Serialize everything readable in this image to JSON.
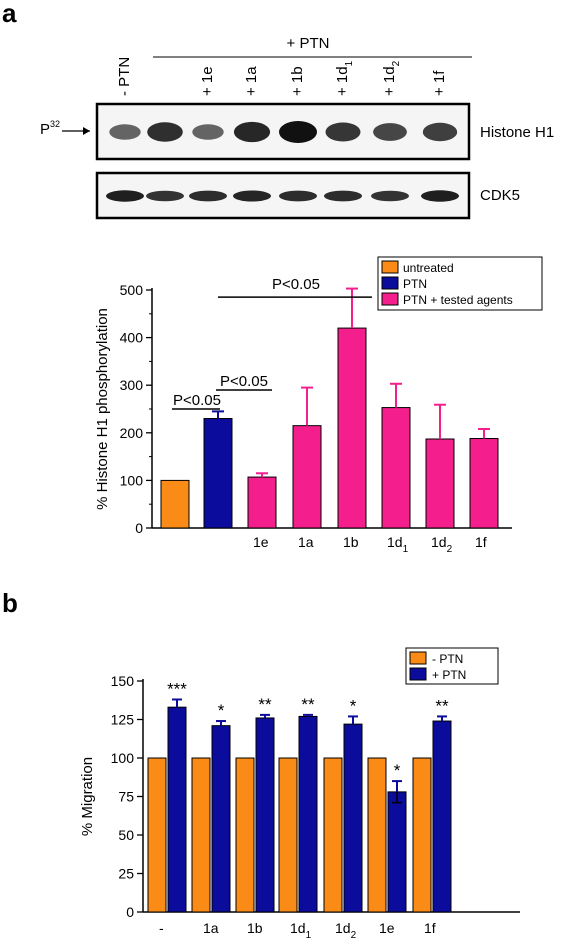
{
  "panels": {
    "a": "a",
    "b": "b"
  },
  "blot": {
    "ptn_header": "+ PTN",
    "lane_labels": [
      "- PTN",
      "",
      "+ 1e",
      "+ 1a",
      "+ 1b",
      "+ 1d1",
      "+ 1d2",
      "+ 1f"
    ],
    "lane_label_parts": [
      {
        "base": "- PTN",
        "sub": ""
      },
      {
        "base": "",
        "sub": ""
      },
      {
        "base": "+ 1e",
        "sub": ""
      },
      {
        "base": "+ 1a",
        "sub": ""
      },
      {
        "base": "+ 1b",
        "sub": ""
      },
      {
        "base": "+ 1d",
        "sub": "1"
      },
      {
        "base": "+ 1d",
        "sub": "2"
      },
      {
        "base": "+ 1f",
        "sub": ""
      }
    ],
    "marker_label": "P",
    "marker_sup": "32",
    "histone_label": "Histone H1",
    "cdk5_label": "CDK5",
    "histone_band_intensity": [
      0.45,
      0.8,
      0.45,
      0.85,
      1.0,
      0.75,
      0.65,
      0.7
    ],
    "cdk5_band_intensity": [
      0.9,
      0.75,
      0.8,
      0.85,
      0.8,
      0.8,
      0.75,
      0.9
    ]
  },
  "chart_data": [
    {
      "type": "bar",
      "ylabel": "% Histone H1 phosphorylation",
      "ylim": [
        0,
        500
      ],
      "yticks": [
        0,
        100,
        200,
        300,
        400,
        500
      ],
      "categories": [
        "",
        "",
        "1e",
        "1a",
        "1b",
        "1d1",
        "1d2",
        "1f"
      ],
      "category_parts": [
        {
          "base": "",
          "sub": ""
        },
        {
          "base": "",
          "sub": ""
        },
        {
          "base": "1e",
          "sub": ""
        },
        {
          "base": "1a",
          "sub": ""
        },
        {
          "base": "1b",
          "sub": ""
        },
        {
          "base": "1d",
          "sub": "1"
        },
        {
          "base": "1d",
          "sub": "2"
        },
        {
          "base": "1f",
          "sub": ""
        }
      ],
      "values": [
        100,
        230,
        107,
        215,
        420,
        253,
        187,
        188
      ],
      "errors": [
        0,
        15,
        8,
        80,
        83,
        50,
        72,
        20
      ],
      "groups": [
        "untreated",
        "PTN",
        "PTN + tested agents",
        "PTN + tested agents",
        "PTN + tested agents",
        "PTN + tested agents",
        "PTN + tested agents",
        "PTN + tested agents"
      ],
      "legend": [
        {
          "label": "untreated",
          "color": "#f98b16"
        },
        {
          "label": "PTN",
          "color": "#0b0b9c"
        },
        {
          "label": "PTN + tested agents",
          "color": "#f41f8d"
        }
      ],
      "legend_position": "top-right",
      "annotations": [
        {
          "text": "P<0.05",
          "from": 0,
          "to": 1
        },
        {
          "text": "P<0.05",
          "from": 1,
          "to": 2
        },
        {
          "text": "P<0.05",
          "from": 1,
          "to": 4
        }
      ]
    },
    {
      "type": "bar",
      "ylabel": "% Migration",
      "ylim": [
        0,
        150
      ],
      "yticks": [
        0,
        25,
        50,
        75,
        100,
        125,
        150
      ],
      "categories": [
        "-",
        "1a",
        "1b",
        "1d1",
        "1d2",
        "1e",
        "1f"
      ],
      "category_parts": [
        {
          "base": "-",
          "sub": ""
        },
        {
          "base": "1a",
          "sub": ""
        },
        {
          "base": "1b",
          "sub": ""
        },
        {
          "base": "1d",
          "sub": "1"
        },
        {
          "base": "1d",
          "sub": "2"
        },
        {
          "base": "1e",
          "sub": ""
        },
        {
          "base": "1f",
          "sub": ""
        }
      ],
      "series": [
        {
          "name": "- PTN",
          "color": "#f98b16",
          "values": [
            100,
            100,
            100,
            100,
            100,
            100,
            100
          ],
          "errors": [
            0,
            0,
            0,
            0,
            0,
            0,
            0
          ]
        },
        {
          "name": "+ PTN",
          "color": "#0b0b9c",
          "values": [
            133,
            121,
            126,
            127,
            122,
            78,
            124
          ],
          "errors": [
            5,
            3,
            2,
            1,
            5,
            7,
            3
          ]
        }
      ],
      "significance": [
        "***",
        "*",
        "**",
        "**",
        "*",
        "*",
        "**"
      ],
      "legend_position": "top-right"
    }
  ]
}
